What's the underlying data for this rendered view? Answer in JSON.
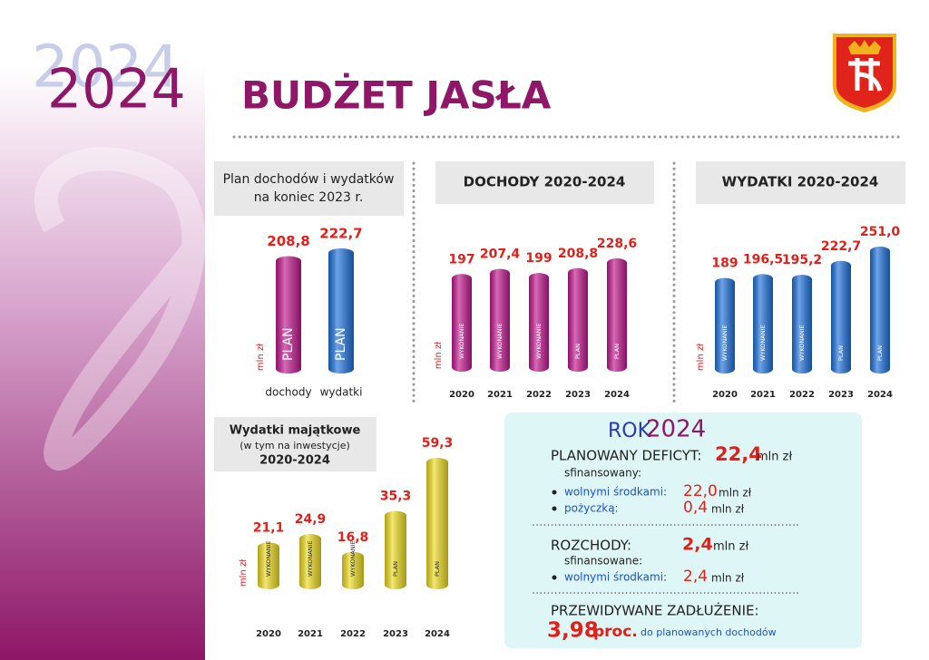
{
  "header": {
    "year_shadow": "2024",
    "year": "2024",
    "title": "BUDŻET JASŁA"
  },
  "chart_data": [
    {
      "type": "bar",
      "title": "Plan dochodów i wydatków",
      "subtitle": "na koniec 2023 r.",
      "y_label": "mln zł",
      "categories": [
        "dochody",
        "wydatki"
      ],
      "values": [
        208.8,
        222.7
      ],
      "value_labels": [
        "208,8",
        "222,7"
      ],
      "bar_labels": [
        "PLAN",
        "PLAN"
      ],
      "colors": [
        "#c2198f",
        "#1f72dc"
      ]
    },
    {
      "type": "bar",
      "title": "DOCHODY  2020-2024",
      "y_label": "mln zł",
      "categories": [
        "2020",
        "2021",
        "2022",
        "2023",
        "2024"
      ],
      "values": [
        197,
        207.4,
        199,
        208.8,
        228.6
      ],
      "value_labels": [
        "197",
        "207,4",
        "199",
        "208,8",
        "228,6"
      ],
      "bar_labels": [
        "WYKONANIE",
        "WYKONANIE",
        "WYKONANIE",
        "PLAN",
        "PLAN"
      ],
      "color": "#c2198f"
    },
    {
      "type": "bar",
      "title": "WYDATKI  2020-2024",
      "y_label": "mln zł",
      "categories": [
        "2020",
        "2021",
        "2022",
        "2023",
        "2024"
      ],
      "values": [
        189,
        196.5,
        195.2,
        222.7,
        251.0
      ],
      "value_labels": [
        "189",
        "196,5",
        "195,2",
        "222,7",
        "251,0"
      ],
      "bar_labels": [
        "WYKONANIE",
        "WYKONANIE",
        "WYKONANIE",
        "PLAN",
        "PLAN"
      ],
      "color": "#1f72dc"
    },
    {
      "type": "bar",
      "title": "Wydatki majątkowe",
      "subtitle": "(w tym na inwestycje)",
      "subtitle_2": "2020-2024",
      "y_label": "mln zł",
      "categories": [
        "2020",
        "2021",
        "2022",
        "2023",
        "2024"
      ],
      "values": [
        21.1,
        24.9,
        16.8,
        35.3,
        59.3
      ],
      "value_labels": [
        "21,1",
        "24,9",
        "16,8",
        "35,3",
        "59,3"
      ],
      "bar_labels": [
        "WYKONANIE",
        "WYKONANIE",
        "WYKONANIE",
        "PLAN",
        "PLAN"
      ],
      "color": "#eedc22"
    }
  ],
  "summary": {
    "title_prefix": "ROK",
    "title_year": "2024",
    "deficit": {
      "label": "PLANOWANY DEFICYT:",
      "value": "22,4",
      "unit": "mln zł",
      "note": "sfinansowany:",
      "items": [
        {
          "label": "wolnymi środkami:",
          "value": "22,0",
          "unit": "mln zł"
        },
        {
          "label": "pożyczką:",
          "value": "0,4",
          "unit": "mln zł"
        }
      ]
    },
    "outflows": {
      "label": "ROZCHODY:",
      "value": "2,4",
      "unit": "mln zł",
      "note": "sfinansowane:",
      "items": [
        {
          "label": "wolnymi środkami:",
          "value": "2,4",
          "unit": "mln zł"
        }
      ]
    },
    "debt": {
      "label": "PRZEWIDYWANE ZADŁUŻENIE:",
      "value": "3,98",
      "unit": "proc.",
      "note": "do planowanych dochodów"
    }
  }
}
